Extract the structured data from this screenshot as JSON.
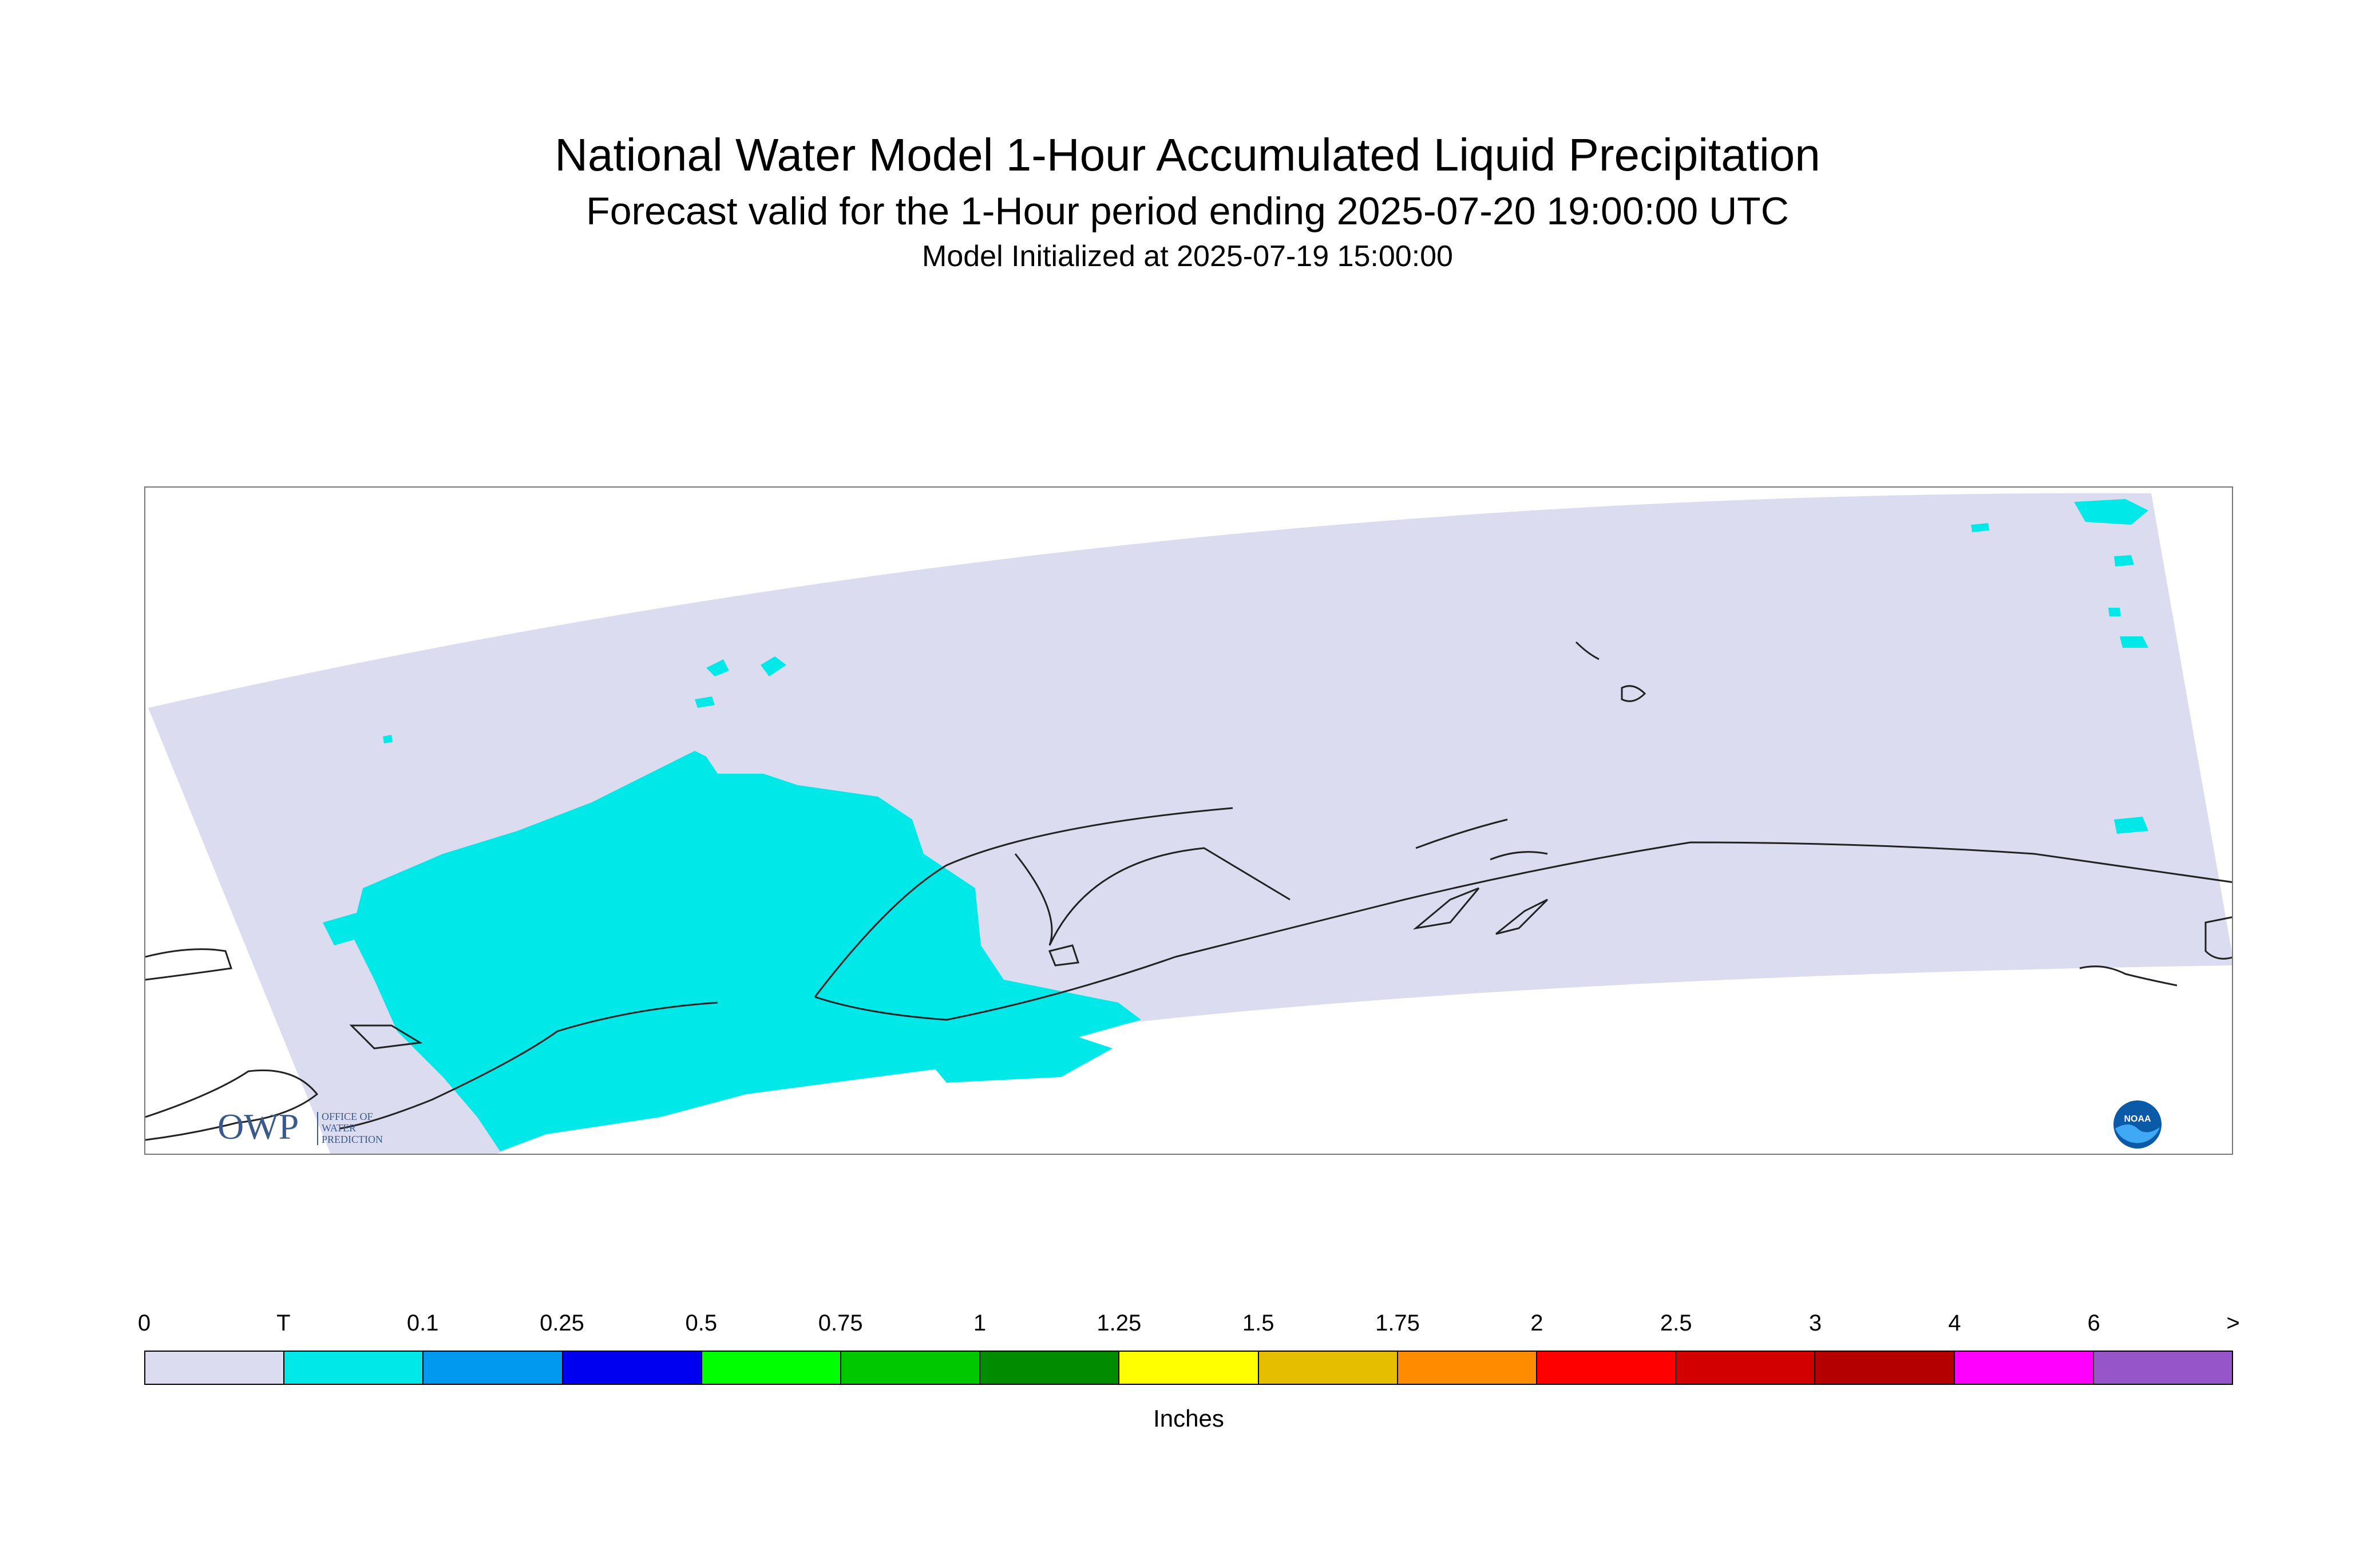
{
  "header": {
    "title": "National Water Model 1-Hour Accumulated Liquid Precipitation",
    "subtitle": "Forecast valid for the 1-Hour period ending 2025-07-20 19:00:00 UTC",
    "init_line": "Model Initialized at 2025-07-19 15:00:00"
  },
  "logos": {
    "owp_mark": "OWP",
    "owp_text_lines": [
      "OFFICE OF",
      "WATER",
      "PREDICTION"
    ],
    "noaa_mark": "NOAA"
  },
  "map": {
    "domain_color": "#dcdcf0",
    "trace_color": "#00e8e8",
    "coast_color": "#222222",
    "domain_region": "Alaska",
    "max_category_shown": "T"
  },
  "legend": {
    "tick_labels": [
      "0",
      "T",
      "0.1",
      "0.25",
      "0.5",
      "0.75",
      "1",
      "1.25",
      "1.5",
      "1.75",
      "2",
      "2.5",
      "3",
      "4",
      "6",
      ">"
    ],
    "colors": [
      "#dcdcf0",
      "#00e8e8",
      "#0099f0",
      "#0000f0",
      "#00ff00",
      "#00c800",
      "#008c00",
      "#ffff00",
      "#e6be00",
      "#ff8c00",
      "#ff0000",
      "#d20000",
      "#b40000",
      "#ff00ff",
      "#9655c8"
    ],
    "units": "Inches"
  }
}
